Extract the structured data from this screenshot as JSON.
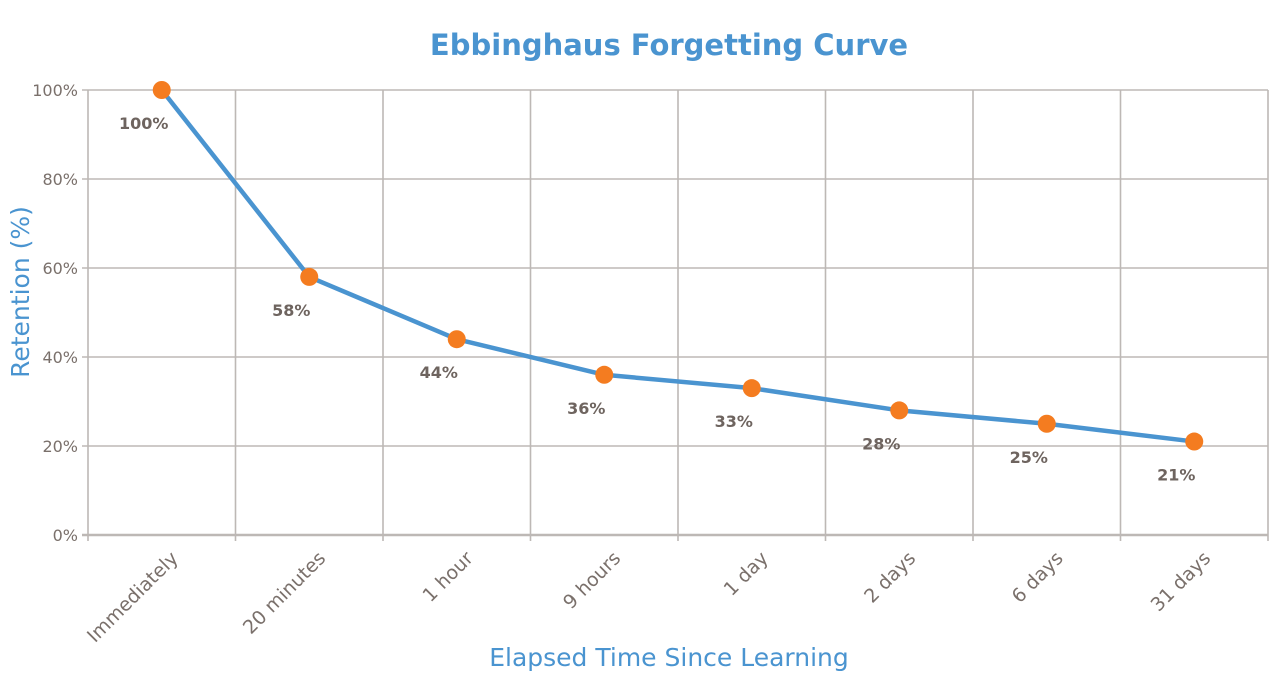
{
  "chart_data": {
    "type": "line",
    "title": "Ebbinghaus Forgetting Curve",
    "xlabel": "Elapsed Time Since Learning",
    "ylabel": "Retention (%)",
    "categories": [
      "Immediately",
      "20 minutes",
      "1 hour",
      "9 hours",
      "1 day",
      "2 days",
      "6 days",
      "31 days"
    ],
    "values": [
      100,
      58,
      44,
      36,
      33,
      28,
      25,
      21
    ],
    "data_labels": [
      "100%",
      "58%",
      "44%",
      "36%",
      "33%",
      "28%",
      "25%",
      "21%"
    ],
    "ylim": [
      0,
      100
    ],
    "yticks": [
      "0%",
      "20%",
      "40%",
      "60%",
      "80%",
      "100%"
    ],
    "grid": true,
    "colors": {
      "line": "#4a94d0",
      "marker": "#f47c20",
      "grid": "#bdb8b5",
      "title": "#4a94d0",
      "text": "#7a706b"
    }
  }
}
